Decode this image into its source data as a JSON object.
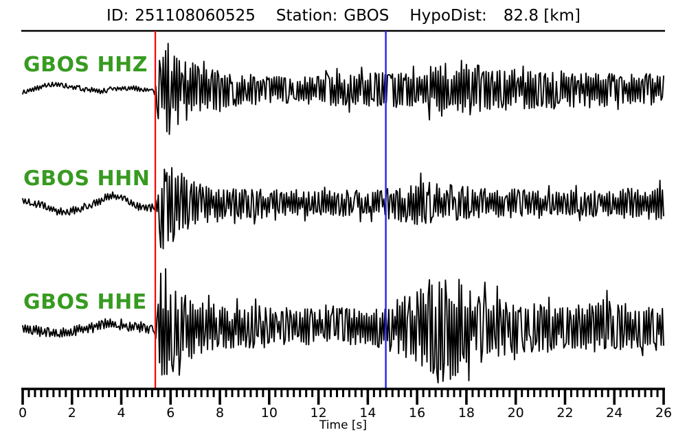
{
  "header": {
    "id_label": "ID:",
    "id_value": "251108060525",
    "station_label": "Station:",
    "station_value": "GBOS",
    "hypodist_label": "HypoDist:",
    "hypodist_value": "82.8 [km]"
  },
  "colors": {
    "trace": "#000000",
    "label_green": "#379b21",
    "p_pick_red": "#ff0000",
    "s_pick_blue": "#2222f0",
    "axis_black": "#000000"
  },
  "chart_data": {
    "type": "line",
    "title": "ID: 251108060525  Station: GBOS  HypoDist: 82.8 [km]",
    "xlabel": "Time [s]",
    "xlim": [
      0,
      26
    ],
    "xticks": [
      0,
      2,
      4,
      6,
      8,
      10,
      12,
      14,
      16,
      18,
      20,
      22,
      24,
      26
    ],
    "minor_tick_step": 0.25,
    "grid": false,
    "picks": {
      "p_arrival_s": 5.38,
      "s_arrival_s": 14.73
    },
    "traces": [
      {
        "label": "GBOS HHZ",
        "seed": 101,
        "baseline": [
          [
            0,
            -3
          ],
          [
            0.6,
            3
          ],
          [
            1.2,
            9
          ],
          [
            1.9,
            5
          ],
          [
            2.6,
            0
          ],
          [
            3.2,
            -2
          ],
          [
            3.9,
            2
          ],
          [
            4.4,
            3
          ],
          [
            4.9,
            0
          ],
          [
            5.3,
            -2
          ],
          [
            5.5,
            0
          ],
          [
            26,
            0
          ]
        ],
        "envelope": [
          [
            0,
            3.5
          ],
          [
            5.3,
            3.5
          ],
          [
            5.42,
            10
          ],
          [
            5.55,
            85
          ],
          [
            5.75,
            78
          ],
          [
            6.1,
            62
          ],
          [
            6.5,
            48
          ],
          [
            7.2,
            34
          ],
          [
            8,
            27
          ],
          [
            9,
            23
          ],
          [
            10,
            20
          ],
          [
            11.5,
            20
          ],
          [
            13,
            24
          ],
          [
            14.7,
            27
          ],
          [
            15.6,
            24
          ],
          [
            16.4,
            32
          ],
          [
            17,
            46
          ],
          [
            17.5,
            30
          ],
          [
            18.2,
            42
          ],
          [
            18.8,
            30
          ],
          [
            19.6,
            33
          ],
          [
            20.5,
            27
          ],
          [
            21.5,
            29
          ],
          [
            22.5,
            25
          ],
          [
            23.5,
            27
          ],
          [
            24.5,
            23
          ],
          [
            25.3,
            24
          ],
          [
            26,
            20
          ]
        ]
      },
      {
        "label": "GBOS HHN",
        "seed": 202,
        "baseline": [
          [
            0,
            5
          ],
          [
            0.8,
            -2
          ],
          [
            1.6,
            -12
          ],
          [
            2.3,
            -8
          ],
          [
            3,
            2
          ],
          [
            3.6,
            11
          ],
          [
            4.1,
            8
          ],
          [
            4.7,
            -4
          ],
          [
            5.1,
            -7
          ],
          [
            5.35,
            -4
          ],
          [
            5.6,
            0
          ],
          [
            26,
            0
          ]
        ],
        "envelope": [
          [
            0,
            5
          ],
          [
            5.3,
            5
          ],
          [
            5.45,
            12
          ],
          [
            5.6,
            80
          ],
          [
            5.85,
            70
          ],
          [
            6.2,
            52
          ],
          [
            6.7,
            38
          ],
          [
            7.4,
            28
          ],
          [
            8.5,
            24
          ],
          [
            10,
            22
          ],
          [
            11.5,
            19
          ],
          [
            13,
            19
          ],
          [
            14.2,
            20
          ],
          [
            14.8,
            23
          ],
          [
            15.6,
            27
          ],
          [
            16.3,
            36
          ],
          [
            16.9,
            28
          ],
          [
            17.6,
            26
          ],
          [
            18.5,
            24
          ],
          [
            19.5,
            21
          ],
          [
            20.5,
            23
          ],
          [
            21.5,
            19
          ],
          [
            22.5,
            21
          ],
          [
            23.5,
            18
          ],
          [
            24.3,
            21
          ],
          [
            25.2,
            24
          ],
          [
            26,
            27
          ]
        ]
      },
      {
        "label": "GBOS HHE",
        "seed": 303,
        "baseline": [
          [
            0,
            -2
          ],
          [
            0.7,
            -6
          ],
          [
            1.4,
            -9
          ],
          [
            2.1,
            -5
          ],
          [
            2.8,
            1
          ],
          [
            3.4,
            5
          ],
          [
            4,
            3
          ],
          [
            4.6,
            -1
          ],
          [
            5.1,
            -3
          ],
          [
            5.38,
            -2
          ],
          [
            5.6,
            0
          ],
          [
            26,
            0
          ]
        ],
        "envelope": [
          [
            0,
            7
          ],
          [
            5.3,
            7
          ],
          [
            5.45,
            14
          ],
          [
            5.6,
            80
          ],
          [
            5.9,
            72
          ],
          [
            6.4,
            52
          ],
          [
            7.2,
            38
          ],
          [
            8.2,
            30
          ],
          [
            9.3,
            33
          ],
          [
            10.3,
            28
          ],
          [
            11.5,
            30
          ],
          [
            12.5,
            28
          ],
          [
            13.5,
            29
          ],
          [
            14.4,
            31
          ],
          [
            15,
            38
          ],
          [
            15.7,
            48
          ],
          [
            16.3,
            62
          ],
          [
            16.9,
            78
          ],
          [
            17.3,
            85
          ],
          [
            17.9,
            62
          ],
          [
            18.6,
            52
          ],
          [
            19.4,
            44
          ],
          [
            20.2,
            38
          ],
          [
            21,
            35
          ],
          [
            22,
            32
          ],
          [
            23,
            38
          ],
          [
            23.8,
            42
          ],
          [
            24.6,
            34
          ],
          [
            25.4,
            31
          ],
          [
            26,
            28
          ]
        ]
      }
    ]
  }
}
